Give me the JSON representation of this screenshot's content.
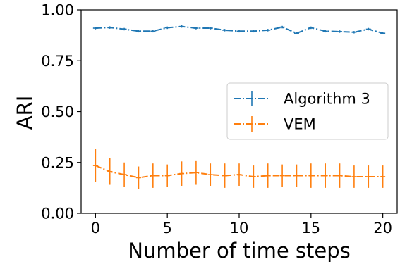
{
  "chart_data": {
    "type": "line",
    "xlabel": "Number of time steps",
    "ylabel": "ARI",
    "xlim": [
      -1,
      21
    ],
    "ylim": [
      0,
      1
    ],
    "xticks": [
      0,
      5,
      10,
      15,
      20
    ],
    "yticks": [
      0,
      0.25,
      0.5,
      0.75,
      1.0
    ],
    "xtick_labels": [
      "0",
      "5",
      "10",
      "15",
      "20"
    ],
    "ytick_labels": [
      "0.00",
      "0.25",
      "0.50",
      "0.75",
      "1.00"
    ],
    "legend_position": "center-right",
    "x": [
      0,
      1,
      2,
      3,
      4,
      5,
      6,
      7,
      8,
      9,
      10,
      11,
      12,
      13,
      14,
      15,
      16,
      17,
      18,
      19,
      20
    ],
    "series": [
      {
        "name": "Algorithm 3",
        "color": "#1f77b4",
        "linestyle": "dash-dot",
        "values": [
          0.91,
          0.913,
          0.905,
          0.895,
          0.895,
          0.912,
          0.918,
          0.91,
          0.91,
          0.9,
          0.895,
          0.895,
          0.9,
          0.915,
          0.885,
          0.912,
          0.895,
          0.893,
          0.89,
          0.905,
          0.885
        ],
        "errors": [
          0.006,
          0.006,
          0.006,
          0.006,
          0.006,
          0.006,
          0.006,
          0.006,
          0.006,
          0.006,
          0.006,
          0.006,
          0.006,
          0.006,
          0.006,
          0.006,
          0.006,
          0.006,
          0.006,
          0.006,
          0.006
        ]
      },
      {
        "name": "VEM",
        "color": "#ff7f0e",
        "linestyle": "dash-dot",
        "values": [
          0.235,
          0.205,
          0.19,
          0.175,
          0.185,
          0.185,
          0.195,
          0.2,
          0.19,
          0.185,
          0.19,
          0.18,
          0.185,
          0.185,
          0.185,
          0.185,
          0.185,
          0.185,
          0.18,
          0.18,
          0.18
        ],
        "errors": [
          0.08,
          0.065,
          0.06,
          0.055,
          0.06,
          0.055,
          0.06,
          0.06,
          0.055,
          0.06,
          0.055,
          0.055,
          0.06,
          0.055,
          0.055,
          0.06,
          0.06,
          0.06,
          0.055,
          0.055,
          0.055
        ]
      }
    ]
  }
}
